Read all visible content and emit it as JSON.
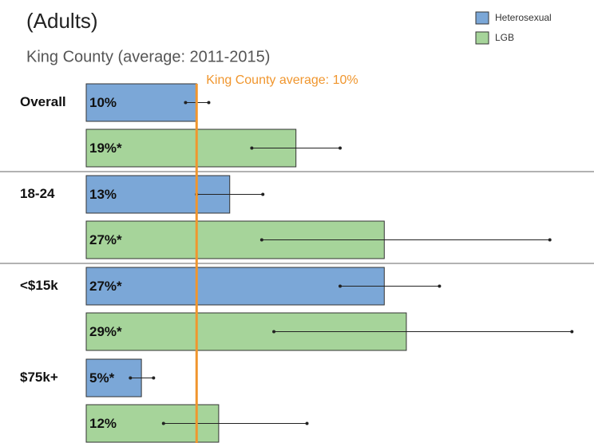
{
  "chart_data": {
    "type": "bar",
    "orientation": "horizontal",
    "title": "(Adults)",
    "subtitle": "King County (average: 2011-2015)",
    "categories": [
      "Overall",
      "18-24",
      "<$15k",
      "$75k+"
    ],
    "series": [
      {
        "name": "Heterosexual",
        "color": "#7ba7d7",
        "values": [
          10,
          13,
          27,
          5
        ],
        "value_labels": [
          "10%",
          "13%",
          "27%*",
          "5%*"
        ],
        "lower": [
          9,
          10,
          23,
          4
        ],
        "upper": [
          11.1,
          16,
          32,
          6.1
        ]
      },
      {
        "name": "LGB",
        "color": "#a6d49a",
        "values": [
          19,
          27,
          29,
          12
        ],
        "value_labels": [
          "19%*",
          "27%*",
          "29%*",
          "12%"
        ],
        "lower": [
          15,
          15.9,
          17,
          7
        ],
        "upper": [
          23,
          42,
          44,
          20
        ]
      }
    ],
    "reference": {
      "value": 10,
      "label": "King County average: 10%",
      "color": "#f0962e"
    },
    "xlim": [
      0,
      46
    ],
    "legend": "top-right"
  }
}
